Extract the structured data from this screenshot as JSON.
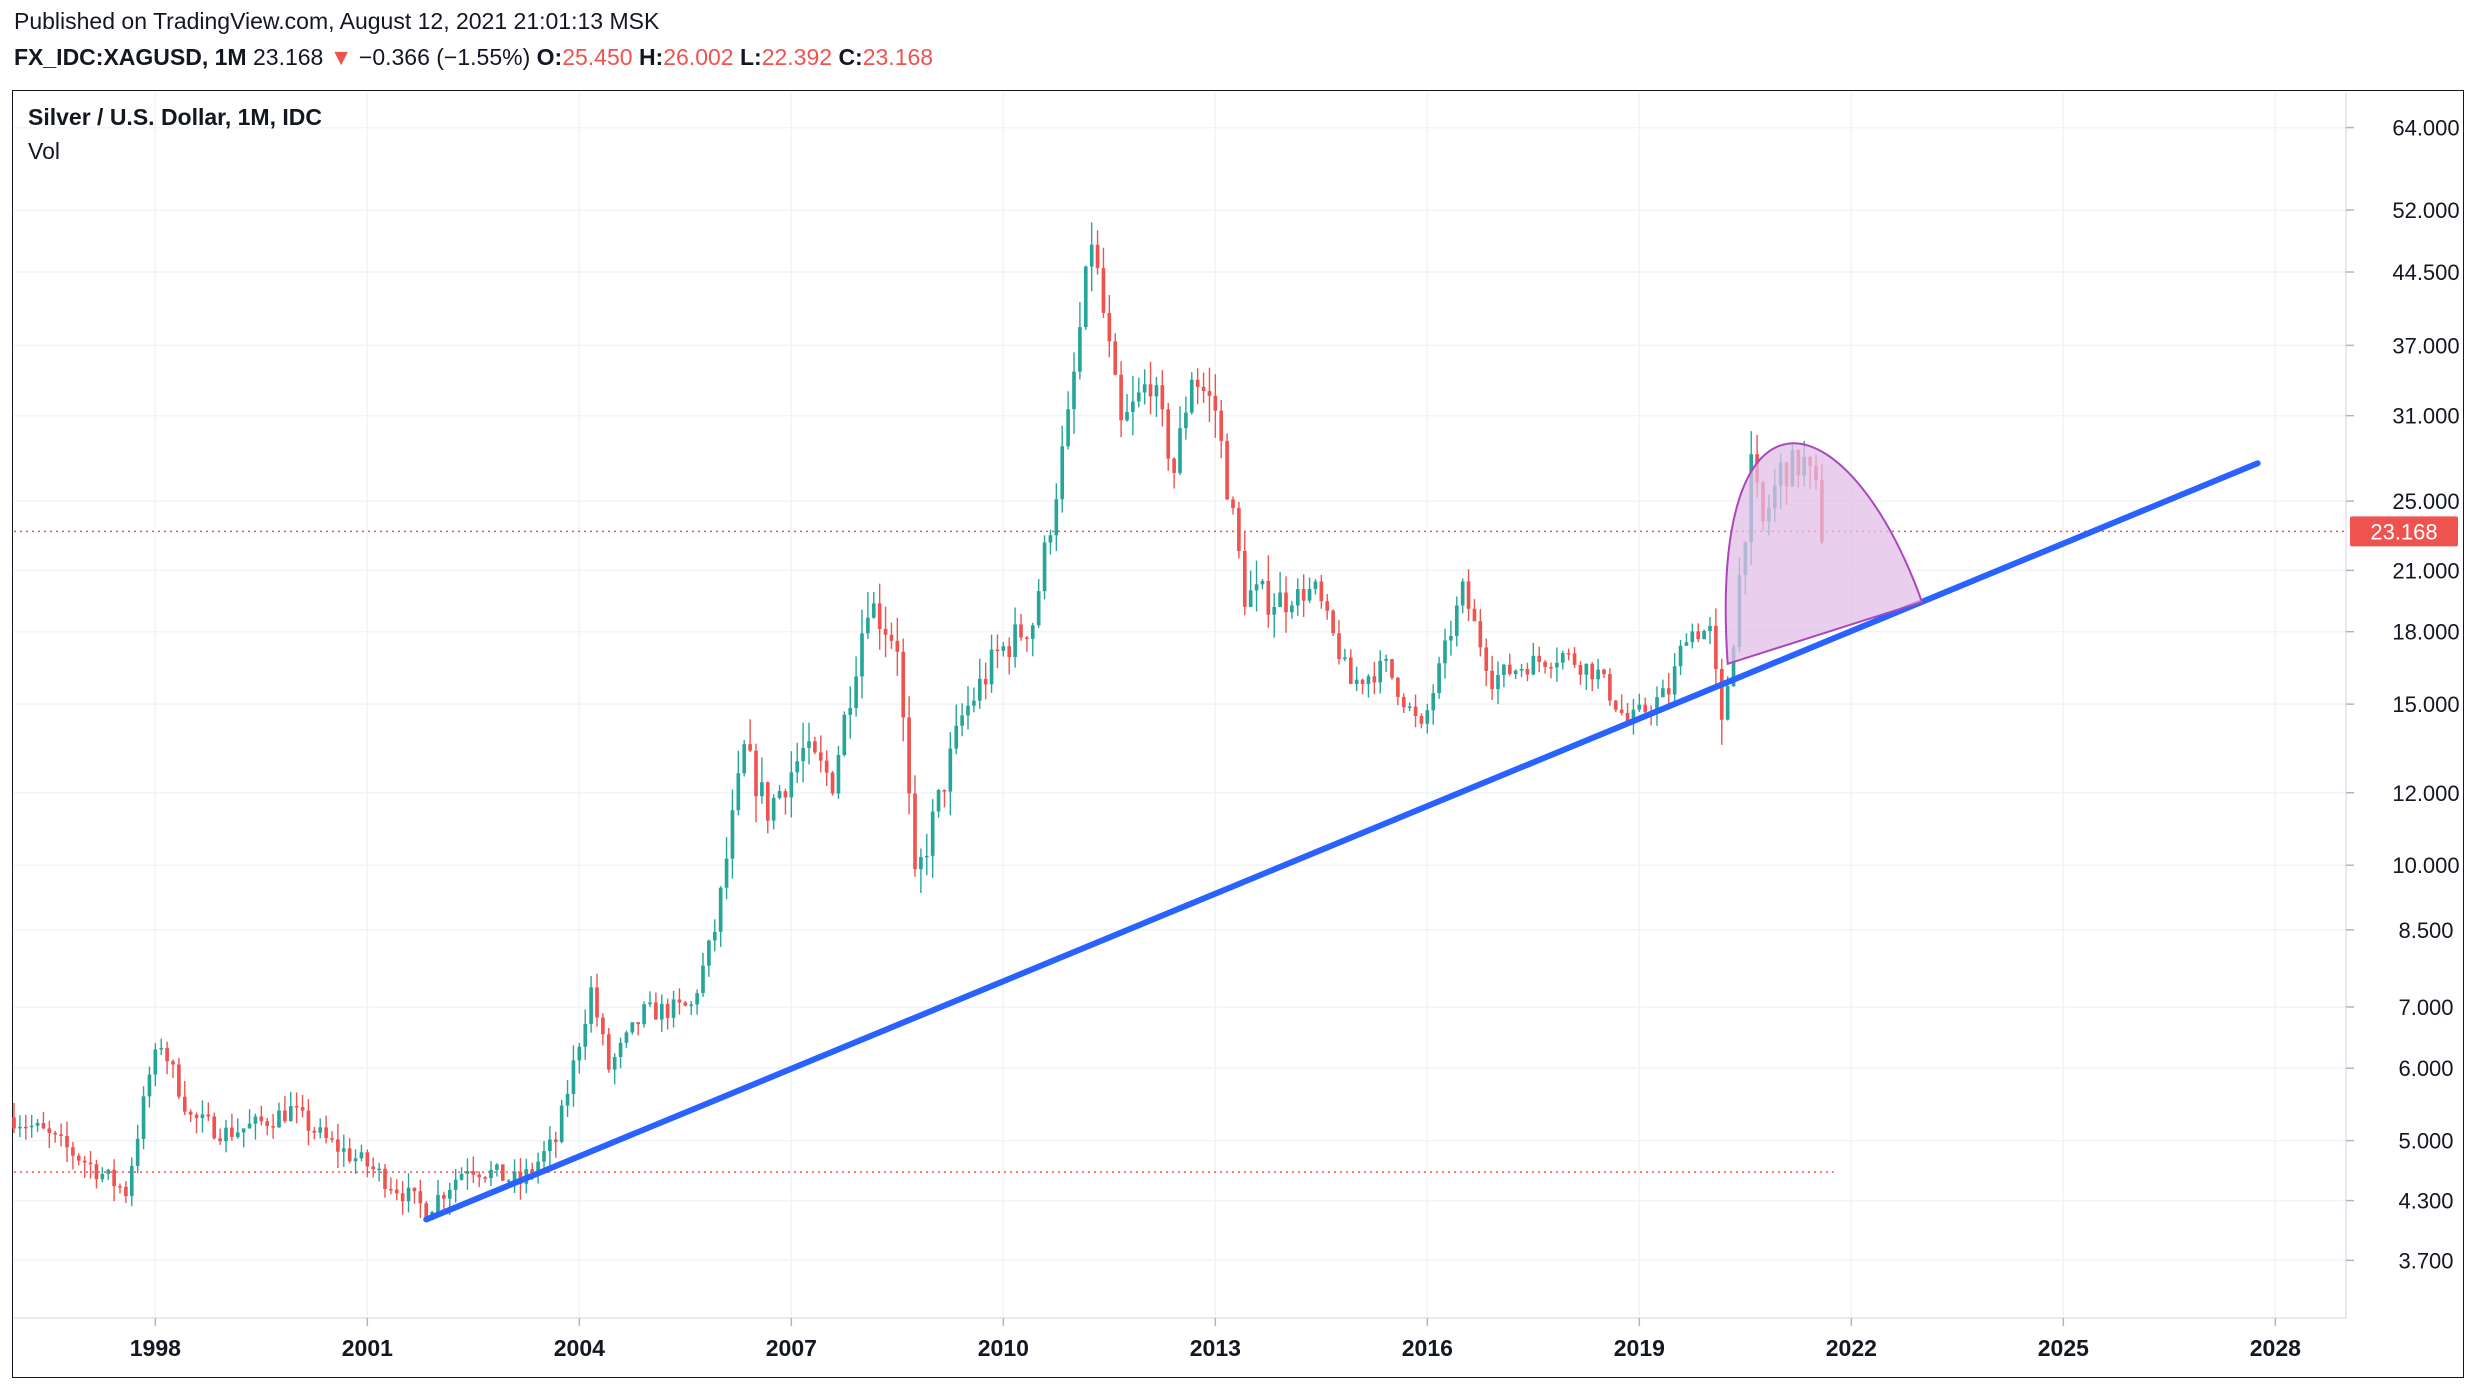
{
  "header": {
    "published": "Published on TradingView.com, August 12, 2021 21:01:13 MSK",
    "symbol": "FX_IDC:XAGUSD, 1M",
    "last": "23.168",
    "change_arrow": "▼",
    "change": "−0.366 (−1.55%)",
    "o_label": "O:",
    "o_value": "25.450",
    "h_label": "H:",
    "h_value": "26.002",
    "l_label": "L:",
    "l_value": "22.392",
    "c_label": "C:",
    "c_value": "23.168"
  },
  "legend": {
    "title": "Silver / U.S. Dollar, 1M, IDC",
    "vol": "Vol"
  },
  "colors": {
    "up": "#26a69a",
    "down": "#ef5350",
    "trendline": "#2962ff",
    "arc_fill": "#e1bee7",
    "arc_stroke": "#ab47bc",
    "price_tag": "#ef5350",
    "grid": "#f0f3fa"
  },
  "chart_data": {
    "type": "candlestick",
    "y_scale": "log",
    "ylim": [
      3.2,
      70
    ],
    "xlim": [
      "1996-01",
      "2029-01"
    ],
    "x_ticks": [
      "1998",
      "2001",
      "2004",
      "2007",
      "2010",
      "2013",
      "2016",
      "2019",
      "2022",
      "2025",
      "2028"
    ],
    "y_ticks": [
      "64.000",
      "52.000",
      "44.500",
      "37.000",
      "31.000",
      "25.000",
      "21.000",
      "18.000",
      "15.000",
      "12.000",
      "10.000",
      "8.500",
      "7.000",
      "6.000",
      "5.000",
      "4.300",
      "3.700"
    ],
    "last_price": 23.168,
    "last_price_label": "23.168",
    "horizontal_level": 4.62,
    "anchors": [
      [
        "1996-01",
        5.3
      ],
      [
        "1996-06",
        5.1
      ],
      [
        "1997-01",
        4.75
      ],
      [
        "1997-08",
        4.4
      ],
      [
        "1997-12",
        5.9
      ],
      [
        "1998-02",
        6.4
      ],
      [
        "1998-07",
        5.3
      ],
      [
        "1999-01",
        5.1
      ],
      [
        "1999-06",
        5.2
      ],
      [
        "1999-12",
        5.4
      ],
      [
        "2000-06",
        5.0
      ],
      [
        "2001-01",
        4.7
      ],
      [
        "2001-11",
        4.2
      ],
      [
        "2002-06",
        4.7
      ],
      [
        "2003-03",
        4.5
      ],
      [
        "2003-09",
        5.0
      ],
      [
        "2004-03",
        7.3
      ],
      [
        "2004-06",
        6.0
      ],
      [
        "2004-12",
        6.9
      ],
      [
        "2005-08",
        7.0
      ],
      [
        "2005-12",
        8.5
      ],
      [
        "2006-05",
        13.3
      ],
      [
        "2006-09",
        11.5
      ],
      [
        "2007-03",
        13.3
      ],
      [
        "2007-08",
        12.4
      ],
      [
        "2008-02",
        19.5
      ],
      [
        "2008-07",
        17.5
      ],
      [
        "2008-10",
        9.5
      ],
      [
        "2009-06",
        14.5
      ],
      [
        "2009-12",
        17.0
      ],
      [
        "2010-06",
        18.5
      ],
      [
        "2010-12",
        30.5
      ],
      [
        "2011-04",
        48.5
      ],
      [
        "2011-09",
        30.0
      ],
      [
        "2012-02",
        34.0
      ],
      [
        "2012-06",
        27.0
      ],
      [
        "2012-09",
        34.5
      ],
      [
        "2013-01",
        31.5
      ],
      [
        "2013-06",
        19.8
      ],
      [
        "2013-12",
        19.5
      ],
      [
        "2014-06",
        20.0
      ],
      [
        "2014-12",
        15.8
      ],
      [
        "2015-06",
        16.5
      ],
      [
        "2015-12",
        14.0
      ],
      [
        "2016-07",
        20.0
      ],
      [
        "2016-12",
        16.0
      ],
      [
        "2017-06",
        16.6
      ],
      [
        "2017-12",
        17.0
      ],
      [
        "2018-06",
        16.2
      ],
      [
        "2018-11",
        14.3
      ],
      [
        "2019-06",
        15.5
      ],
      [
        "2019-09",
        18.0
      ],
      [
        "2020-01",
        18.0
      ],
      [
        "2020-03",
        14.0
      ],
      [
        "2020-05",
        18.0
      ],
      [
        "2020-08",
        27.0
      ],
      [
        "2020-10",
        23.5
      ],
      [
        "2021-01",
        27.0
      ],
      [
        "2021-05",
        27.5
      ],
      [
        "2021-07",
        25.5
      ],
      [
        "2021-08",
        23.168
      ]
    ],
    "annotations": [
      {
        "type": "trendline",
        "from": [
          "2001-11",
          4.1
        ],
        "to": [
          "2027-10",
          27.5
        ]
      },
      {
        "type": "arc",
        "from": [
          "2020-04",
          16.6
        ],
        "to": [
          "2023-01",
          19.4
        ],
        "peak": 29.5
      }
    ]
  }
}
